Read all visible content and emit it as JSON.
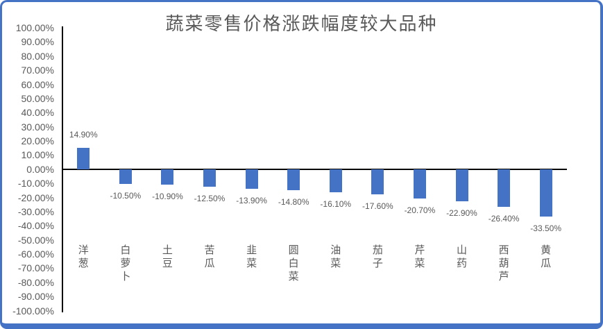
{
  "chart_data": {
    "type": "bar",
    "title": "蔬菜零售价格涨跌幅度较大品种",
    "categories": [
      "洋葱",
      "白萝卜",
      "土豆",
      "苦瓜",
      "韭菜",
      "圆白菜",
      "油菜",
      "茄子",
      "芹菜",
      "山药",
      "西葫芦",
      "黄瓜"
    ],
    "values": [
      14.9,
      -10.5,
      -10.9,
      -12.5,
      -13.9,
      -14.8,
      -16.1,
      -17.6,
      -20.7,
      -22.9,
      -26.4,
      -33.5
    ],
    "data_labels": [
      "14.90%",
      "-10.50%",
      "-10.90%",
      "-12.50%",
      "-13.90%",
      "-14.80%",
      "-16.10%",
      "-17.60%",
      "-20.70%",
      "-22.90%",
      "-26.40%",
      "-33.50%"
    ],
    "y_tick_labels": [
      "100.00%",
      "90.00%",
      "80.00%",
      "70.00%",
      "60.00%",
      "50.00%",
      "40.00%",
      "30.00%",
      "20.00%",
      "10.00%",
      "0.00%",
      "-10.00%",
      "-20.00%",
      "-30.00%",
      "-40.00%",
      "-50.00%",
      "-60.00%",
      "-70.00%",
      "-80.00%",
      "-90.00%",
      "-100.00%"
    ],
    "xlabel": "",
    "ylabel": "",
    "ylim": [
      -100,
      100
    ],
    "y_tick_step": 10,
    "grid": false,
    "legend": "none",
    "colors": {
      "bar": "#4472C4",
      "frame_border": "#4472C4",
      "title_text": "#595959",
      "axis_text": "#595959",
      "axis_line": "#000000"
    }
  }
}
